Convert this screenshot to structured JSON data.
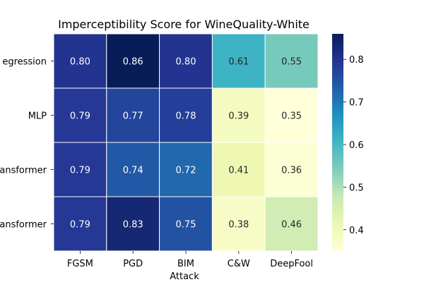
{
  "chart_data": {
    "type": "heatmap",
    "title": "Imperceptibility Score for WineQuality-White",
    "xlabel": "Attack",
    "ylabel": "",
    "columns": [
      "FGSM",
      "PGD",
      "BIM",
      "C&W",
      "DeepFool"
    ],
    "rows": [
      "Regression",
      "MLP",
      "Transformer",
      "Transformer"
    ],
    "row_tick_labels_visible": [
      "egression",
      "MLP",
      "ansformer",
      "ansformer"
    ],
    "values": [
      [
        0.8,
        0.86,
        0.8,
        0.61,
        0.55
      ],
      [
        0.79,
        0.77,
        0.78,
        0.39,
        0.35
      ],
      [
        0.79,
        0.74,
        0.72,
        0.41,
        0.36
      ],
      [
        0.79,
        0.83,
        0.75,
        0.38,
        0.46
      ]
    ],
    "annotation_labels": [
      [
        "0.80",
        "0.86",
        "0.80",
        "0.61",
        "0.55"
      ],
      [
        "0.79",
        "0.77",
        "0.78",
        "0.39",
        "0.35"
      ],
      [
        "0.79",
        "0.74",
        "0.72",
        "0.41",
        "0.36"
      ],
      [
        "0.79",
        "0.83",
        "0.75",
        "0.38",
        "0.46"
      ]
    ],
    "colormap": "YlGnBu",
    "vmin": 0.35,
    "vmax": 0.86,
    "colorbar_ticks": [
      0.4,
      0.5,
      0.6,
      0.7,
      0.8
    ],
    "colorbar_tick_labels": [
      "0.4",
      "0.5",
      "0.6",
      "0.7",
      "0.8"
    ]
  }
}
